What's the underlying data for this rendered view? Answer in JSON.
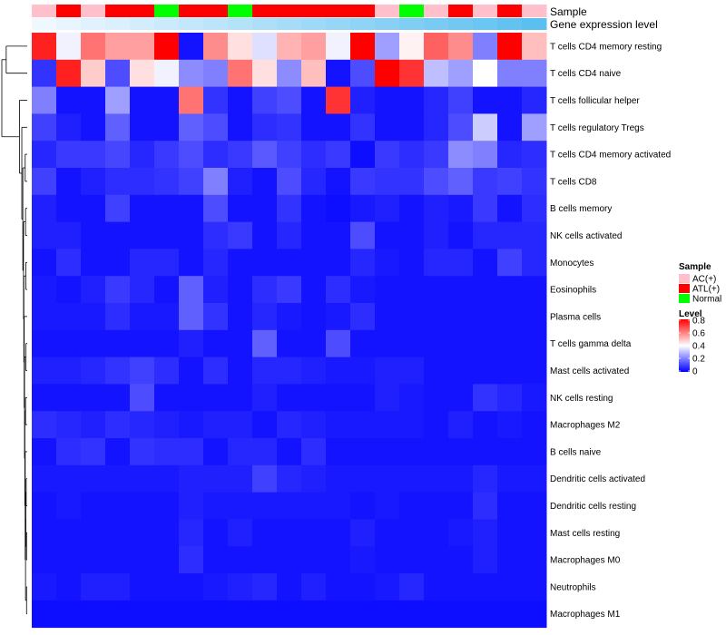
{
  "chart_data": {
    "type": "heatmap",
    "title": "",
    "annotation_titles": {
      "sample": "Sample",
      "gene_expression": "Gene expression level"
    },
    "sample_groups": [
      "AC(+)",
      "ATL(+)",
      "AC(+)",
      "ATL(+)",
      "ATL(+)",
      "Normal",
      "ATL(+)",
      "ATL(+)",
      "Normal",
      "ATL(+)",
      "ATL(+)",
      "ATL(+)",
      "ATL(+)",
      "ATL(+)",
      "AC(+)",
      "Normal",
      "AC(+)",
      "ATL(+)",
      "AC(+)",
      "ATL(+)",
      "AC(+)"
    ],
    "gene_expression_level": [
      0.0,
      0.05,
      0.1,
      0.15,
      0.2,
      0.25,
      0.3,
      0.35,
      0.4,
      0.45,
      0.5,
      0.55,
      0.6,
      0.65,
      0.7,
      0.75,
      0.8,
      0.85,
      0.9,
      0.95,
      1.0
    ],
    "rows": [
      "T cells CD4 memory resting",
      "T cells CD4 naive",
      "T cells follicular helper",
      "T cells regulatory  Tregs",
      "T cells CD4 memory activated",
      "T cells CD8",
      "B cells memory",
      "NK cells activated",
      "Monocytes",
      "Eosinophils",
      "Plasma cells",
      "T cells gamma delta",
      "Mast cells activated",
      "NK cells resting",
      "Macrophages M2",
      "B cells naive",
      "Dendritic cells activated",
      "Dendritic cells resting",
      "Mast cells resting",
      "Macrophages M0",
      "Neutrophils",
      "Macrophages M1"
    ],
    "values": [
      [
        0.75,
        0.38,
        0.62,
        0.55,
        0.55,
        0.8,
        0.03,
        0.58,
        0.45,
        0.35,
        0.52,
        0.55,
        0.38,
        0.8,
        0.25,
        0.42,
        0.65,
        0.58,
        0.2,
        0.8,
        0.5
      ],
      [
        0.08,
        0.75,
        0.48,
        0.12,
        0.45,
        0.38,
        0.22,
        0.2,
        0.62,
        0.45,
        0.22,
        0.5,
        0.03,
        0.12,
        0.8,
        0.72,
        0.3,
        0.25,
        0.4,
        0.2,
        0.2
      ],
      [
        0.2,
        0.03,
        0.03,
        0.25,
        0.03,
        0.03,
        0.62,
        0.08,
        0.03,
        0.1,
        0.12,
        0.03,
        0.72,
        0.05,
        0.03,
        0.03,
        0.06,
        0.1,
        0.03,
        0.03,
        0.06
      ],
      [
        0.1,
        0.05,
        0.03,
        0.15,
        0.03,
        0.03,
        0.15,
        0.12,
        0.03,
        0.07,
        0.08,
        0.03,
        0.03,
        0.08,
        0.03,
        0.03,
        0.06,
        0.12,
        0.32,
        0.03,
        0.25
      ],
      [
        0.06,
        0.09,
        0.09,
        0.11,
        0.06,
        0.09,
        0.12,
        0.07,
        0.09,
        0.14,
        0.1,
        0.07,
        0.09,
        0.02,
        0.09,
        0.07,
        0.09,
        0.22,
        0.2,
        0.06,
        0.07
      ],
      [
        0.1,
        0.03,
        0.05,
        0.07,
        0.07,
        0.08,
        0.1,
        0.2,
        0.05,
        0.03,
        0.12,
        0.06,
        0.03,
        0.09,
        0.08,
        0.08,
        0.12,
        0.15,
        0.09,
        0.1,
        0.08
      ],
      [
        0.05,
        0.03,
        0.03,
        0.1,
        0.03,
        0.03,
        0.03,
        0.12,
        0.03,
        0.03,
        0.08,
        0.03,
        0.02,
        0.04,
        0.05,
        0.03,
        0.05,
        0.04,
        0.09,
        0.03,
        0.07
      ],
      [
        0.05,
        0.05,
        0.03,
        0.03,
        0.03,
        0.03,
        0.03,
        0.07,
        0.09,
        0.03,
        0.06,
        0.03,
        0.03,
        0.12,
        0.03,
        0.03,
        0.05,
        0.03,
        0.06,
        0.06,
        0.06
      ],
      [
        0.03,
        0.07,
        0.03,
        0.03,
        0.06,
        0.06,
        0.03,
        0.06,
        0.03,
        0.03,
        0.03,
        0.03,
        0.03,
        0.06,
        0.04,
        0.03,
        0.06,
        0.06,
        0.03,
        0.1,
        0.06
      ],
      [
        0.04,
        0.03,
        0.05,
        0.09,
        0.06,
        0.03,
        0.15,
        0.05,
        0.03,
        0.07,
        0.09,
        0.03,
        0.07,
        0.04,
        0.03,
        0.03,
        0.03,
        0.03,
        0.03,
        0.03,
        0.03
      ],
      [
        0.04,
        0.04,
        0.04,
        0.07,
        0.04,
        0.04,
        0.15,
        0.08,
        0.03,
        0.06,
        0.04,
        0.03,
        0.04,
        0.07,
        0.03,
        0.03,
        0.03,
        0.03,
        0.03,
        0.03,
        0.03
      ],
      [
        0.03,
        0.03,
        0.03,
        0.03,
        0.03,
        0.03,
        0.05,
        0.03,
        0.03,
        0.15,
        0.03,
        0.03,
        0.12,
        0.03,
        0.03,
        0.03,
        0.03,
        0.03,
        0.03,
        0.03,
        0.03
      ],
      [
        0.05,
        0.05,
        0.06,
        0.08,
        0.1,
        0.07,
        0.03,
        0.07,
        0.03,
        0.06,
        0.06,
        0.05,
        0.04,
        0.04,
        0.05,
        0.05,
        0.03,
        0.03,
        0.03,
        0.03,
        0.03
      ],
      [
        0.03,
        0.03,
        0.03,
        0.03,
        0.12,
        0.03,
        0.03,
        0.03,
        0.03,
        0.05,
        0.03,
        0.03,
        0.03,
        0.03,
        0.05,
        0.04,
        0.03,
        0.03,
        0.08,
        0.06,
        0.04
      ],
      [
        0.07,
        0.06,
        0.05,
        0.07,
        0.06,
        0.05,
        0.04,
        0.05,
        0.05,
        0.03,
        0.06,
        0.05,
        0.04,
        0.04,
        0.04,
        0.04,
        0.03,
        0.05,
        0.03,
        0.04,
        0.03
      ],
      [
        0.03,
        0.07,
        0.08,
        0.03,
        0.08,
        0.07,
        0.07,
        0.03,
        0.06,
        0.06,
        0.03,
        0.07,
        0.03,
        0.03,
        0.03,
        0.03,
        0.03,
        0.03,
        0.03,
        0.03,
        0.03
      ],
      [
        0.04,
        0.04,
        0.04,
        0.04,
        0.04,
        0.04,
        0.05,
        0.05,
        0.05,
        0.1,
        0.06,
        0.05,
        0.04,
        0.04,
        0.04,
        0.04,
        0.04,
        0.04,
        0.06,
        0.04,
        0.04
      ],
      [
        0.03,
        0.04,
        0.03,
        0.03,
        0.03,
        0.03,
        0.05,
        0.04,
        0.04,
        0.04,
        0.04,
        0.04,
        0.04,
        0.03,
        0.04,
        0.03,
        0.03,
        0.03,
        0.07,
        0.03,
        0.03
      ],
      [
        0.03,
        0.03,
        0.03,
        0.03,
        0.03,
        0.03,
        0.06,
        0.03,
        0.05,
        0.03,
        0.03,
        0.03,
        0.03,
        0.05,
        0.03,
        0.03,
        0.03,
        0.04,
        0.05,
        0.03,
        0.03
      ],
      [
        0.03,
        0.03,
        0.03,
        0.03,
        0.03,
        0.03,
        0.07,
        0.03,
        0.03,
        0.03,
        0.03,
        0.03,
        0.03,
        0.04,
        0.03,
        0.03,
        0.03,
        0.03,
        0.05,
        0.03,
        0.03
      ],
      [
        0.04,
        0.03,
        0.05,
        0.05,
        0.03,
        0.03,
        0.03,
        0.04,
        0.05,
        0.06,
        0.03,
        0.05,
        0.03,
        0.03,
        0.04,
        0.06,
        0.03,
        0.03,
        0.03,
        0.03,
        0.03
      ],
      [
        0.02,
        0.02,
        0.02,
        0.02,
        0.02,
        0.02,
        0.02,
        0.02,
        0.02,
        0.02,
        0.02,
        0.02,
        0.02,
        0.02,
        0.02,
        0.02,
        0.02,
        0.02,
        0.02,
        0.02,
        0.02
      ]
    ],
    "row_dendrogram": [
      {
        "a": 0,
        "b": 1,
        "h": 0.62,
        "node": "n0"
      },
      {
        "a": 4,
        "b": 5,
        "h": 0.06,
        "node": "n1"
      },
      {
        "a": 6,
        "b": 7,
        "h": 0.05,
        "node": "n2"
      },
      {
        "a": 11,
        "b": 12,
        "h": 0.04,
        "node": "n3"
      },
      {
        "a": 13,
        "b": 14,
        "h": 0.05,
        "node": "n4"
      },
      {
        "a": 16,
        "b": 17,
        "h": 0.03,
        "node": "n5"
      },
      {
        "a": 18,
        "b": 19,
        "h": 0.02,
        "node": "n6"
      },
      {
        "a": 20,
        "b": 21,
        "h": 0.02,
        "node": "n7"
      },
      {
        "a": 8,
        "b": 9,
        "h": 0.04,
        "node": "n8"
      },
      {
        "a": "n5",
        "b": "n6",
        "h": 0.04,
        "node": "n9"
      },
      {
        "a": "n9",
        "b": "n7",
        "h": 0.05,
        "node": "n10"
      },
      {
        "a": 15,
        "b": "n10",
        "h": 0.06,
        "node": "n11"
      },
      {
        "a": "n4",
        "b": "n11",
        "h": 0.07,
        "node": "n12"
      },
      {
        "a": "n3",
        "b": "n12",
        "h": 0.08,
        "node": "n13"
      },
      {
        "a": 10,
        "b": "n13",
        "h": 0.09,
        "node": "n14"
      },
      {
        "a": "n8",
        "b": "n14",
        "h": 0.1,
        "node": "n15"
      },
      {
        "a": "n2",
        "b": "n15",
        "h": 0.11,
        "node": "n16"
      },
      {
        "a": "n1",
        "b": "n16",
        "h": 0.13,
        "node": "n17"
      },
      {
        "a": 3,
        "b": "n17",
        "h": 0.16,
        "node": "n18"
      },
      {
        "a": 2,
        "b": "n18",
        "h": 0.23,
        "node": "n19"
      },
      {
        "a": "n0",
        "b": "n19",
        "h": 0.75,
        "node": "n20"
      }
    ],
    "legend_sample": {
      "title": "Sample",
      "items": [
        {
          "label": "AC(+)",
          "color": "#ffc0cb"
        },
        {
          "label": "ATL(+)",
          "color": "#ff0000"
        },
        {
          "label": "Normal",
          "color": "#00ff00"
        }
      ]
    },
    "legend_level": {
      "title": "Level",
      "ticks": [
        0.8,
        0.6,
        0.4,
        0.2,
        0
      ],
      "tick_labels": [
        "0.8",
        "0.6",
        "0.4",
        "0.2",
        "0"
      ],
      "range": [
        0,
        0.8
      ]
    },
    "colors": {
      "low": "#0000ff",
      "mid": "#ffffff",
      "high": "#ff0000",
      "expr_low": "#f0f8ff",
      "expr_high": "#5bc0f0"
    }
  }
}
